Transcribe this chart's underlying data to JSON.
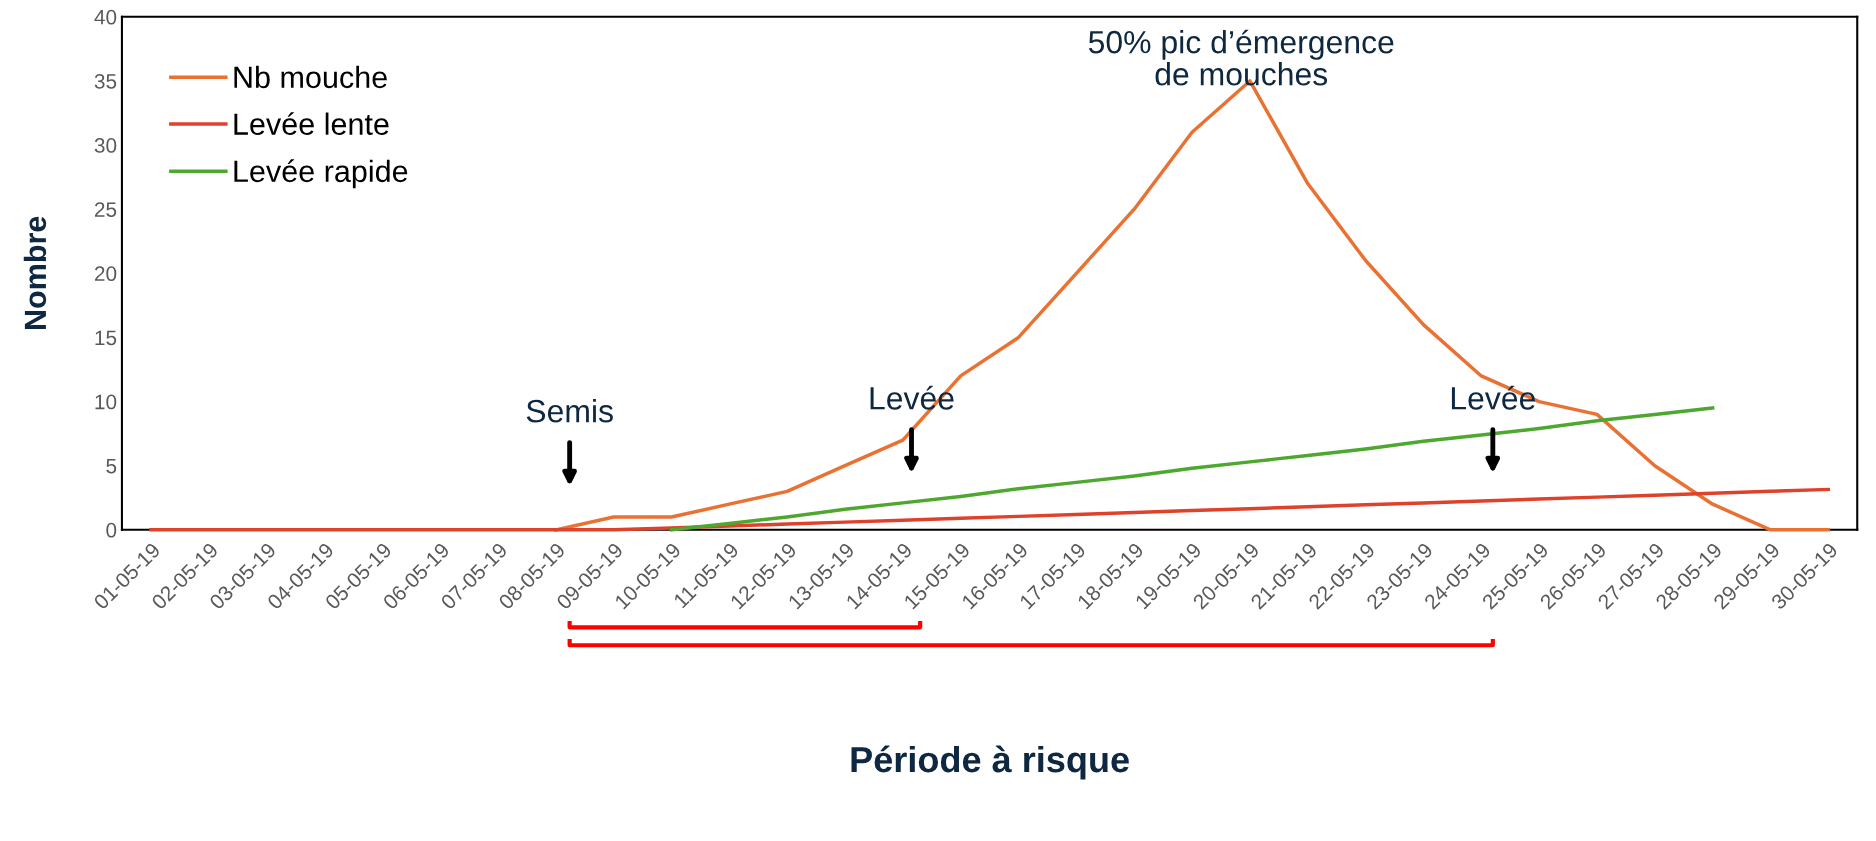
{
  "chart_data": {
    "type": "line",
    "xlabel": "Période à risque",
    "ylabel": "Nombre",
    "categories": [
      "01-05-19",
      "02-05-19",
      "03-05-19",
      "04-05-19",
      "05-05-19",
      "06-05-19",
      "07-05-19",
      "08-05-19",
      "09-05-19",
      "10-05-19",
      "11-05-19",
      "12-05-19",
      "13-05-19",
      "14-05-19",
      "15-05-19",
      "16-05-19",
      "17-05-19",
      "18-05-19",
      "19-05-19",
      "20-05-19",
      "21-05-19",
      "22-05-19",
      "23-05-19",
      "24-05-19",
      "25-05-19",
      "26-05-19",
      "27-05-19",
      "28-05-19",
      "29-05-19",
      "30-05-19"
    ],
    "series": [
      {
        "name": "Nb mouche",
        "color": "#e97132",
        "values": [
          null,
          null,
          null,
          null,
          null,
          null,
          null,
          0,
          1,
          1,
          2,
          3,
          5,
          7,
          12,
          15,
          20,
          25,
          31,
          35,
          27,
          21,
          16,
          12,
          10,
          9,
          5,
          2,
          0,
          0
        ]
      },
      {
        "name": "Levée lente",
        "color": "#e0412b",
        "values": [
          0,
          0,
          0,
          0,
          0,
          0,
          0,
          0,
          0,
          0.15,
          0.3,
          0.45,
          0.6,
          0.75,
          0.9,
          1.05,
          1.2,
          1.35,
          1.5,
          1.65,
          1.8,
          1.95,
          2.1,
          2.25,
          2.4,
          2.55,
          2.7,
          2.85,
          3.0,
          3.15
        ]
      },
      {
        "name": "Levée rapide",
        "color": "#4ea72e",
        "values": [
          null,
          null,
          null,
          null,
          null,
          null,
          null,
          null,
          null,
          0,
          0.5,
          1,
          1.6,
          2.1,
          2.6,
          3.2,
          3.7,
          4.2,
          4.8,
          5.3,
          5.8,
          6.3,
          6.9,
          7.4,
          7.9,
          8.5,
          9,
          9.5,
          null,
          null
        ]
      }
    ],
    "ylim": [
      0,
      40
    ],
    "yticks": [
      0,
      5,
      10,
      15,
      20,
      25,
      30,
      35,
      40
    ],
    "grid": false,
    "legend": "top left",
    "marker": "none",
    "line_style": "solid",
    "annotations": [
      "50% pic d’émergence\nde mouches",
      "Semis",
      "Levée",
      "Levée"
    ]
  }
}
